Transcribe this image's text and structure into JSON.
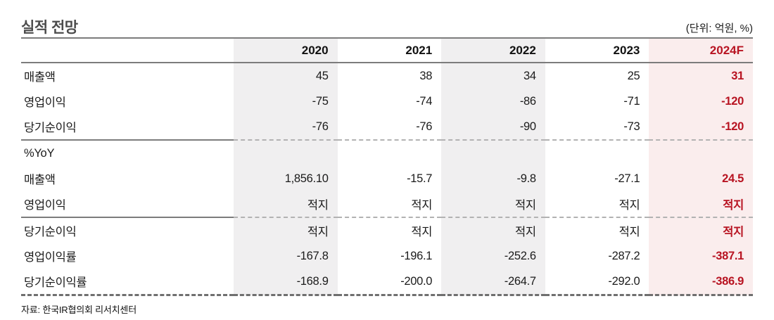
{
  "title": "실적 전망",
  "unit_note": "(단위: 억원, %)",
  "source": "자료: 한국IR협의회 리서치센터",
  "colors": {
    "red": "#b81422",
    "pink_column_bg": "#faeded",
    "gray_column_bg": "#f0eff0",
    "rule_gray": "#7c7c7c"
  },
  "table": {
    "columns": [
      "",
      "2020",
      "2021",
      "2022",
      "2023",
      "2024F"
    ],
    "forecast_column": "2024F",
    "rows": [
      {
        "label": "매출액",
        "values": [
          "45",
          "38",
          "34",
          "25",
          "31"
        ]
      },
      {
        "label": "영업이익",
        "values": [
          "-75",
          "-74",
          "-86",
          "-71",
          "-120"
        ]
      },
      {
        "label": "당기순이익",
        "values": [
          "-76",
          "-76",
          "-90",
          "-73",
          "-120"
        ]
      },
      {
        "label": "%YoY",
        "values": [
          "",
          "",
          "",
          "",
          ""
        ]
      },
      {
        "label": "매출액",
        "values": [
          "1,856.10",
          "-15.7",
          "-9.8",
          "-27.1",
          "24.5"
        ]
      },
      {
        "label": "영업이익",
        "values": [
          "적지",
          "적지",
          "적지",
          "적지",
          "적지"
        ]
      },
      {
        "label": "당기순이익",
        "values": [
          "적지",
          "적지",
          "적지",
          "적지",
          "적지"
        ]
      },
      {
        "label": "영업이익률",
        "values": [
          "-167.8",
          "-196.1",
          "-252.6",
          "-287.2",
          "-387.1"
        ]
      },
      {
        "label": "당기순이익률",
        "values": [
          "-168.9",
          "-200.0",
          "-264.7",
          "-292.0",
          "-386.9"
        ]
      }
    ]
  }
}
